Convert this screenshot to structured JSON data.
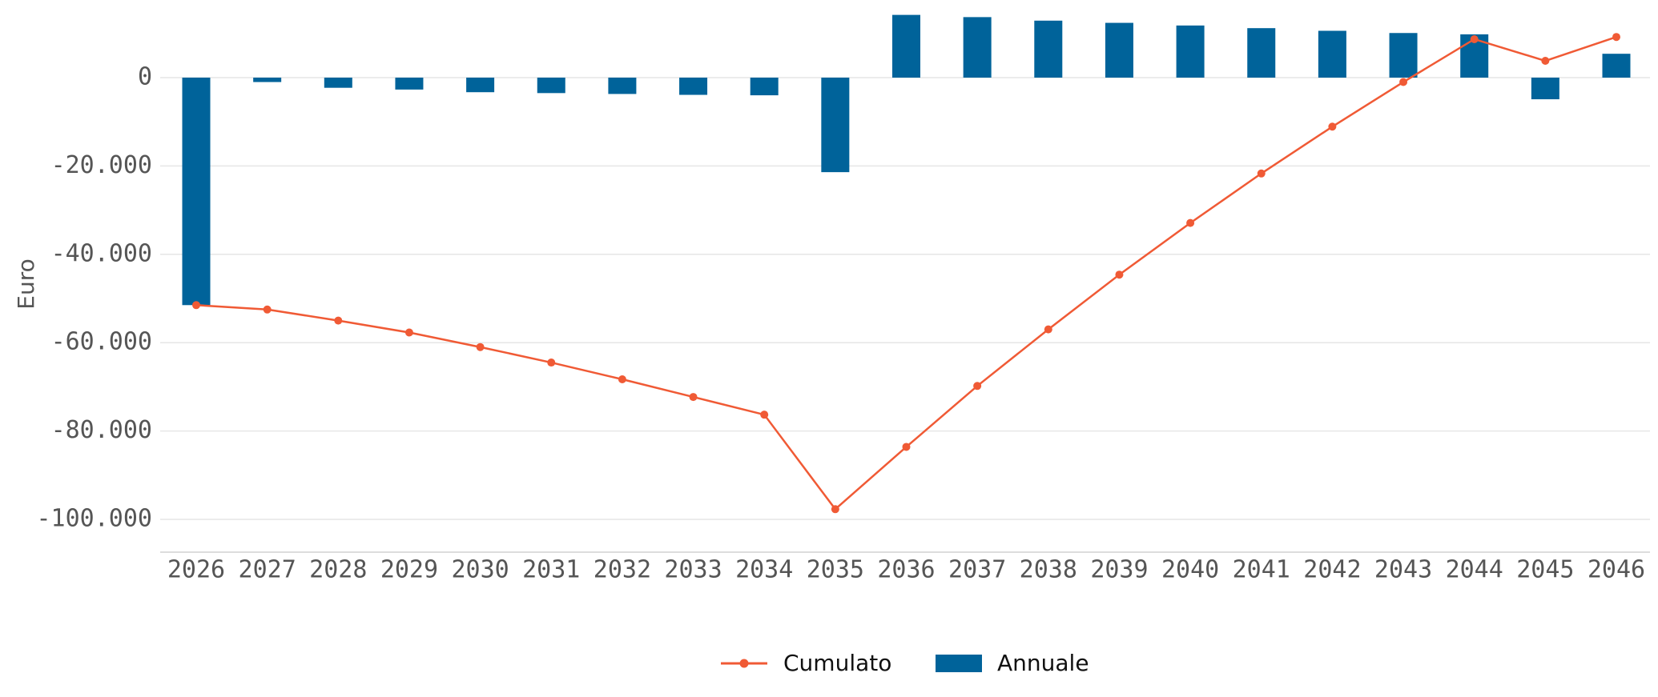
{
  "chart_data": {
    "type": "bar+line",
    "title": "",
    "xlabel": "",
    "ylabel": "Euro",
    "ylim": [
      -108000,
      14500
    ],
    "yticks": [
      0,
      -20000,
      -40000,
      -60000,
      -80000,
      -100000
    ],
    "ytick_labels": [
      "0",
      "-20.000",
      "-40.000",
      "-60.000",
      "-80.000",
      "-100.000"
    ],
    "grid": "horizontal",
    "legend_position": "bottom-center",
    "categories": [
      "2026",
      "2027",
      "2028",
      "2029",
      "2030",
      "2031",
      "2032",
      "2033",
      "2034",
      "2035",
      "2036",
      "2037",
      "2038",
      "2039",
      "2040",
      "2041",
      "2042",
      "2043",
      "2044",
      "2045",
      "2046"
    ],
    "series": [
      {
        "name": "Cumulato",
        "kind": "line",
        "color": "#f05a35",
        "values": [
          -51500,
          -52500,
          -55000,
          -57700,
          -61000,
          -64500,
          -68300,
          -72300,
          -76300,
          -97700,
          -83600,
          -69800,
          -57000,
          -44600,
          -32900,
          -21700,
          -11100,
          -1000,
          8700,
          3800,
          9200
        ]
      },
      {
        "name": "Annuale",
        "kind": "bar",
        "color": "#00639a",
        "values": [
          -51500,
          -1000,
          -2300,
          -2700,
          -3300,
          -3500,
          -3700,
          -3900,
          -4000,
          -21400,
          14200,
          13700,
          12900,
          12400,
          11800,
          11200,
          10600,
          10100,
          9800,
          -4900,
          5400
        ]
      }
    ]
  }
}
